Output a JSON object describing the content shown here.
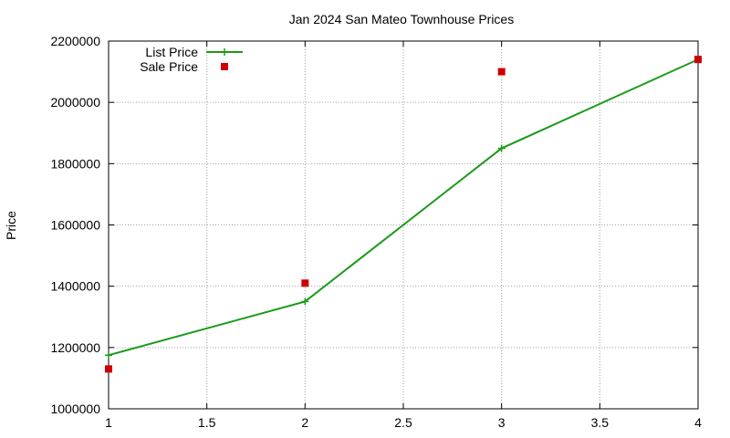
{
  "chart_data": {
    "type": "line",
    "title": "Jan 2024 San Mateo Townhouse Prices",
    "xlabel": "",
    "ylabel": "Price",
    "xlim": [
      1,
      4
    ],
    "ylim": [
      1000000,
      2200000
    ],
    "x_ticks": [
      "1",
      "1.5",
      "2",
      "2.5",
      "3",
      "3.5",
      "4"
    ],
    "y_ticks": [
      "1000000",
      "1200000",
      "1400000",
      "1600000",
      "1800000",
      "2000000",
      "2200000"
    ],
    "grid": true,
    "legend_position": "top-left",
    "series": [
      {
        "name": "List Price",
        "style": "line-with-plus-markers",
        "color": "#1a9b1a",
        "x": [
          1,
          2,
          3,
          4
        ],
        "y": [
          1175000,
          1350000,
          1850000,
          2140000
        ]
      },
      {
        "name": "Sale Price",
        "style": "square-markers",
        "color": "#cc0000",
        "x": [
          1,
          2,
          3,
          4
        ],
        "y": [
          1130000,
          1410000,
          2100000,
          2140000
        ]
      }
    ]
  }
}
